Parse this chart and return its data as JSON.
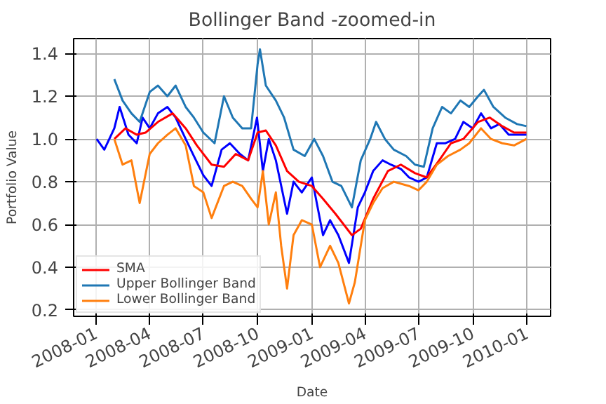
{
  "chart_data": {
    "type": "line",
    "title": "Bollinger Band -zoomed-in",
    "xlabel": "Date",
    "ylabel": "Portfolio Value",
    "xlim": [
      "2007-11-24",
      "2010-02-10"
    ],
    "ylim": [
      0.17,
      1.47
    ],
    "xticks": [
      {
        "value": "2008-01-01",
        "label": "2008-01"
      },
      {
        "value": "2008-04-01",
        "label": "2008-04"
      },
      {
        "value": "2008-07-01",
        "label": "2008-07"
      },
      {
        "value": "2008-10-01",
        "label": "2008-10"
      },
      {
        "value": "2009-01-01",
        "label": "2009-01"
      },
      {
        "value": "2009-04-01",
        "label": "2009-04"
      },
      {
        "value": "2009-07-01",
        "label": "2009-07"
      },
      {
        "value": "2009-10-01",
        "label": "2009-10"
      },
      {
        "value": "2010-01-01",
        "label": "2010-01"
      }
    ],
    "yticks": [
      {
        "value": 0.2,
        "label": "0.2"
      },
      {
        "value": 0.4,
        "label": "0.4"
      },
      {
        "value": 0.6,
        "label": "0.6"
      },
      {
        "value": 0.8,
        "label": "0.8"
      },
      {
        "value": 1.0,
        "label": "1.0"
      },
      {
        "value": 1.2,
        "label": "1.2"
      },
      {
        "value": 1.4,
        "label": "1.4"
      }
    ],
    "grid": true,
    "legend": "bottom left",
    "line_style": "solid",
    "series": [
      {
        "color": "#0000ff",
        "x": [
          "2008-01-02",
          "2008-01-15",
          "2008-02-01",
          "2008-02-10",
          "2008-02-25",
          "2008-03-10",
          "2008-03-20",
          "2008-04-01",
          "2008-04-15",
          "2008-05-01",
          "2008-05-15",
          "2008-06-01",
          "2008-06-15",
          "2008-07-01",
          "2008-07-15",
          "2008-08-01",
          "2008-08-15",
          "2008-09-01",
          "2008-09-15",
          "2008-09-30",
          "2008-10-10",
          "2008-10-20",
          "2008-11-01",
          "2008-11-20",
          "2008-12-01",
          "2008-12-15",
          "2009-01-01",
          "2009-01-20",
          "2009-02-01",
          "2009-02-15",
          "2009-03-05",
          "2009-03-20",
          "2009-04-01",
          "2009-04-15",
          "2009-05-01",
          "2009-05-15",
          "2009-06-01",
          "2009-06-15",
          "2009-07-01",
          "2009-07-15",
          "2009-08-01",
          "2009-08-15",
          "2009-09-01",
          "2009-09-15",
          "2009-10-01",
          "2009-10-15",
          "2009-11-01",
          "2009-11-15",
          "2009-12-01",
          "2009-12-31"
        ],
        "values": [
          1.0,
          0.95,
          1.05,
          1.15,
          1.02,
          0.98,
          1.1,
          1.05,
          1.12,
          1.15,
          1.1,
          1.0,
          0.92,
          0.83,
          0.78,
          0.95,
          0.98,
          0.93,
          0.9,
          1.1,
          0.85,
          1.0,
          0.9,
          0.65,
          0.8,
          0.75,
          0.82,
          0.55,
          0.62,
          0.55,
          0.42,
          0.68,
          0.75,
          0.85,
          0.9,
          0.88,
          0.86,
          0.82,
          0.8,
          0.82,
          0.98,
          0.98,
          1.0,
          1.08,
          1.05,
          1.12,
          1.05,
          1.07,
          1.02,
          1.02
        ]
      },
      {
        "name": "SMA",
        "color": "#ff0000",
        "x": [
          "2008-02-01",
          "2008-02-20",
          "2008-03-10",
          "2008-03-25",
          "2008-04-15",
          "2008-05-10",
          "2008-06-01",
          "2008-06-20",
          "2008-07-15",
          "2008-08-05",
          "2008-08-25",
          "2008-09-15",
          "2008-10-01",
          "2008-10-15",
          "2008-11-01",
          "2008-11-20",
          "2008-12-10",
          "2009-01-01",
          "2009-01-20",
          "2009-02-10",
          "2009-03-10",
          "2009-03-25",
          "2009-04-15",
          "2009-05-10",
          "2009-06-01",
          "2009-06-25",
          "2009-07-15",
          "2009-08-05",
          "2009-08-25",
          "2009-09-15",
          "2009-10-10",
          "2009-10-30",
          "2009-11-20",
          "2009-12-10",
          "2009-12-31"
        ],
        "values": [
          1.0,
          1.05,
          1.02,
          1.03,
          1.08,
          1.12,
          1.05,
          0.97,
          0.88,
          0.87,
          0.93,
          0.9,
          1.03,
          1.04,
          0.97,
          0.85,
          0.8,
          0.78,
          0.72,
          0.65,
          0.55,
          0.58,
          0.72,
          0.85,
          0.88,
          0.84,
          0.82,
          0.9,
          0.98,
          1.0,
          1.08,
          1.1,
          1.06,
          1.03,
          1.03
        ]
      },
      {
        "name": "Upper Bollinger Band",
        "color": "#1f77b4",
        "x": [
          "2008-02-01",
          "2008-02-15",
          "2008-03-01",
          "2008-03-15",
          "2008-04-01",
          "2008-04-15",
          "2008-05-01",
          "2008-05-15",
          "2008-06-01",
          "2008-06-15",
          "2008-07-01",
          "2008-07-20",
          "2008-08-05",
          "2008-08-20",
          "2008-09-05",
          "2008-09-20",
          "2008-10-01",
          "2008-10-05",
          "2008-10-15",
          "2008-11-01",
          "2008-11-15",
          "2008-12-01",
          "2008-12-20",
          "2009-01-05",
          "2009-01-20",
          "2009-02-05",
          "2009-02-20",
          "2009-03-10",
          "2009-03-25",
          "2009-04-10",
          "2009-04-20",
          "2009-05-05",
          "2009-05-20",
          "2009-06-10",
          "2009-06-25",
          "2009-07-10",
          "2009-07-25",
          "2009-08-10",
          "2009-08-25",
          "2009-09-10",
          "2009-09-25",
          "2009-10-10",
          "2009-10-20",
          "2009-11-05",
          "2009-11-25",
          "2009-12-15",
          "2009-12-31"
        ],
        "values": [
          1.28,
          1.18,
          1.12,
          1.08,
          1.22,
          1.25,
          1.2,
          1.25,
          1.15,
          1.1,
          1.03,
          0.98,
          1.2,
          1.1,
          1.05,
          1.05,
          1.35,
          1.42,
          1.25,
          1.18,
          1.1,
          0.95,
          0.92,
          1.0,
          0.92,
          0.8,
          0.78,
          0.68,
          0.9,
          1.0,
          1.08,
          1.0,
          0.95,
          0.92,
          0.88,
          0.87,
          1.05,
          1.15,
          1.12,
          1.18,
          1.15,
          1.2,
          1.23,
          1.15,
          1.1,
          1.07,
          1.06
        ]
      },
      {
        "name": "Lower Bollinger Band",
        "color": "#ff7f0e",
        "x": [
          "2008-02-01",
          "2008-02-15",
          "2008-03-01",
          "2008-03-15",
          "2008-04-01",
          "2008-04-15",
          "2008-05-01",
          "2008-05-15",
          "2008-06-01",
          "2008-06-15",
          "2008-07-01",
          "2008-07-15",
          "2008-08-05",
          "2008-08-20",
          "2008-09-05",
          "2008-09-20",
          "2008-10-01",
          "2008-10-10",
          "2008-10-20",
          "2008-11-01",
          "2008-11-10",
          "2008-11-20",
          "2008-12-01",
          "2008-12-15",
          "2009-01-01",
          "2009-01-15",
          "2009-02-01",
          "2009-02-15",
          "2009-03-05",
          "2009-03-15",
          "2009-04-01",
          "2009-04-15",
          "2009-05-01",
          "2009-05-20",
          "2009-06-15",
          "2009-07-01",
          "2009-07-15",
          "2009-08-01",
          "2009-08-20",
          "2009-09-10",
          "2009-09-25",
          "2009-10-15",
          "2009-11-01",
          "2009-11-20",
          "2009-12-10",
          "2009-12-31"
        ],
        "values": [
          1.0,
          0.88,
          0.9,
          0.7,
          0.93,
          0.98,
          1.02,
          1.05,
          0.97,
          0.78,
          0.75,
          0.63,
          0.78,
          0.8,
          0.78,
          0.72,
          0.68,
          0.85,
          0.6,
          0.75,
          0.5,
          0.3,
          0.55,
          0.62,
          0.6,
          0.4,
          0.5,
          0.42,
          0.23,
          0.33,
          0.62,
          0.7,
          0.77,
          0.8,
          0.78,
          0.76,
          0.8,
          0.88,
          0.92,
          0.95,
          0.98,
          1.05,
          1.0,
          0.98,
          0.97,
          1.0
        ]
      }
    ]
  }
}
